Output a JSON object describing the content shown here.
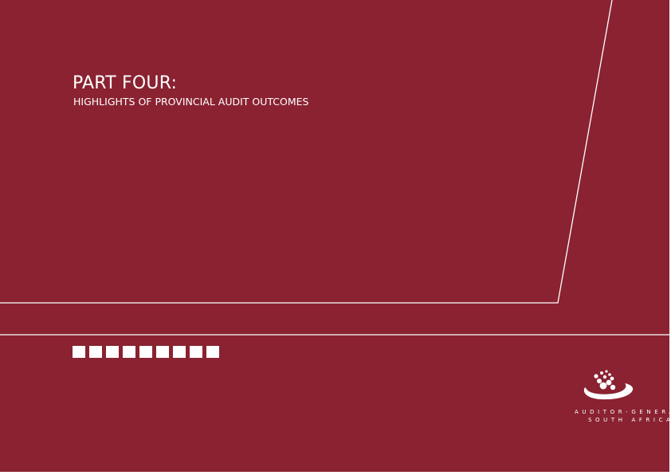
{
  "heading": {
    "part": "PART FOUR:",
    "subtitle": "HIGHLIGHTS OF PROVINCIAL AUDIT OUTCOMES"
  },
  "logo": {
    "line1": "AUDITOR-GENERAL",
    "line2": "SOUTH AFRICA"
  },
  "colors": {
    "background": "#8a2231",
    "foreground": "#ffffff"
  },
  "decoration": {
    "square_count": 9
  }
}
